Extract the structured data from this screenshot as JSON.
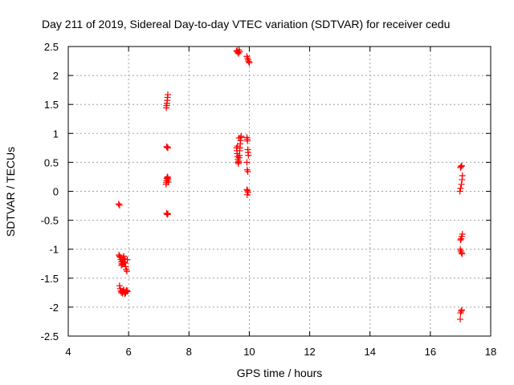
{
  "chart_data": {
    "type": "scatter",
    "title": "Day 211 of 2019, Sidereal Day-to-day VTEC variation (SDTVAR) for receiver cedu",
    "xlabel": "GPS time / hours",
    "ylabel": "SDTVAR / TECUs",
    "xlim": [
      4,
      18
    ],
    "ylim": [
      -2.5,
      2.5
    ],
    "xticks": [
      4,
      6,
      8,
      10,
      12,
      14,
      16,
      18
    ],
    "yticks": [
      -2.5,
      -2,
      -1.5,
      -1,
      -0.5,
      0,
      0.5,
      1,
      1.5,
      2,
      2.5
    ],
    "xtick_labels": [
      "4",
      "6",
      "8",
      "10",
      "12",
      "14",
      "16",
      "18"
    ],
    "ytick_labels": [
      "-2.5",
      "-2",
      "-1.5",
      "-1",
      "-0.5",
      "0",
      "0.5",
      "1",
      "1.5",
      "2",
      "2.5"
    ],
    "grid": true,
    "marker": "+",
    "marker_color": "#ff0000",
    "series": [
      {
        "name": "SDTVAR",
        "points": [
          [
            5.67,
            -0.22
          ],
          [
            5.7,
            -0.24
          ],
          [
            5.68,
            -1.1
          ],
          [
            5.7,
            -1.12
          ],
          [
            5.72,
            -1.14
          ],
          [
            5.74,
            -1.18
          ],
          [
            5.76,
            -1.22
          ],
          [
            5.78,
            -1.25
          ],
          [
            5.8,
            -1.2
          ],
          [
            5.82,
            -1.15
          ],
          [
            5.84,
            -1.12
          ],
          [
            5.86,
            -1.17
          ],
          [
            5.88,
            -1.24
          ],
          [
            5.9,
            -1.3
          ],
          [
            5.92,
            -1.35
          ],
          [
            5.94,
            -1.38
          ],
          [
            5.96,
            -1.18
          ],
          [
            5.76,
            -1.28
          ],
          [
            5.8,
            -1.26
          ],
          [
            5.85,
            -1.22
          ],
          [
            5.7,
            -1.63
          ],
          [
            5.72,
            -1.68
          ],
          [
            5.74,
            -1.72
          ],
          [
            5.76,
            -1.75
          ],
          [
            5.78,
            -1.73
          ],
          [
            5.8,
            -1.76
          ],
          [
            5.82,
            -1.72
          ],
          [
            5.84,
            -1.7
          ],
          [
            5.86,
            -1.74
          ],
          [
            5.88,
            -1.77
          ],
          [
            5.9,
            -1.75
          ],
          [
            5.92,
            -1.72
          ],
          [
            5.94,
            -1.71
          ],
          [
            5.96,
            -1.73
          ],
          [
            7.25,
            1.44
          ],
          [
            7.26,
            1.48
          ],
          [
            7.27,
            1.52
          ],
          [
            7.28,
            1.57
          ],
          [
            7.29,
            1.62
          ],
          [
            7.3,
            1.67
          ],
          [
            7.26,
            0.77
          ],
          [
            7.28,
            0.76
          ],
          [
            7.3,
            0.75
          ],
          [
            7.24,
            0.12
          ],
          [
            7.25,
            0.15
          ],
          [
            7.26,
            0.18
          ],
          [
            7.27,
            0.22
          ],
          [
            7.28,
            0.24
          ],
          [
            7.29,
            0.25
          ],
          [
            7.3,
            0.23
          ],
          [
            7.31,
            0.2
          ],
          [
            7.32,
            0.16
          ],
          [
            7.26,
            -0.38
          ],
          [
            7.28,
            -0.4
          ],
          [
            7.3,
            -0.39
          ],
          [
            9.58,
            2.42
          ],
          [
            9.6,
            2.43
          ],
          [
            9.62,
            2.4
          ],
          [
            9.64,
            2.38
          ],
          [
            9.66,
            2.44
          ],
          [
            9.68,
            2.41
          ],
          [
            9.58,
            0.75
          ],
          [
            9.59,
            0.7
          ],
          [
            9.6,
            0.65
          ],
          [
            9.61,
            0.6
          ],
          [
            9.62,
            0.55
          ],
          [
            9.63,
            0.5
          ],
          [
            9.64,
            0.48
          ],
          [
            9.65,
            0.52
          ],
          [
            9.66,
            0.58
          ],
          [
            9.67,
            0.62
          ],
          [
            9.68,
            0.7
          ],
          [
            9.69,
            0.75
          ],
          [
            9.7,
            0.82
          ],
          [
            9.71,
            0.88
          ],
          [
            9.72,
            0.93
          ],
          [
            9.73,
            0.95
          ],
          [
            9.66,
            0.92
          ],
          [
            9.61,
            0.78
          ],
          [
            9.92,
            2.33
          ],
          [
            9.94,
            2.3
          ],
          [
            9.96,
            2.27
          ],
          [
            9.98,
            2.24
          ],
          [
            10.0,
            2.22
          ],
          [
            9.92,
            0.93
          ],
          [
            9.93,
            0.9
          ],
          [
            9.94,
            0.87
          ],
          [
            9.95,
            0.72
          ],
          [
            9.96,
            0.67
          ],
          [
            9.97,
            0.62
          ],
          [
            9.92,
            0.5
          ],
          [
            9.93,
            0.37
          ],
          [
            9.95,
            0.34
          ],
          [
            9.92,
            0.03
          ],
          [
            9.94,
            0.01
          ],
          [
            9.96,
            -0.02
          ],
          [
            9.93,
            -0.06
          ],
          [
            17.0,
            0.41
          ],
          [
            17.02,
            0.43
          ],
          [
            17.04,
            0.44
          ],
          [
            17.06,
            0.27
          ],
          [
            17.05,
            0.2
          ],
          [
            17.03,
            0.12
          ],
          [
            17.0,
            0.05
          ],
          [
            16.98,
            0.0
          ],
          [
            17.0,
            -0.84
          ],
          [
            17.02,
            -0.82
          ],
          [
            17.04,
            -0.78
          ],
          [
            17.06,
            -0.74
          ],
          [
            16.99,
            -1.0
          ],
          [
            17.01,
            -1.03
          ],
          [
            17.03,
            -1.06
          ],
          [
            17.05,
            -1.08
          ],
          [
            17.0,
            -2.1
          ],
          [
            17.02,
            -2.07
          ],
          [
            17.04,
            -2.05
          ],
          [
            16.99,
            -2.21
          ]
        ]
      }
    ]
  }
}
